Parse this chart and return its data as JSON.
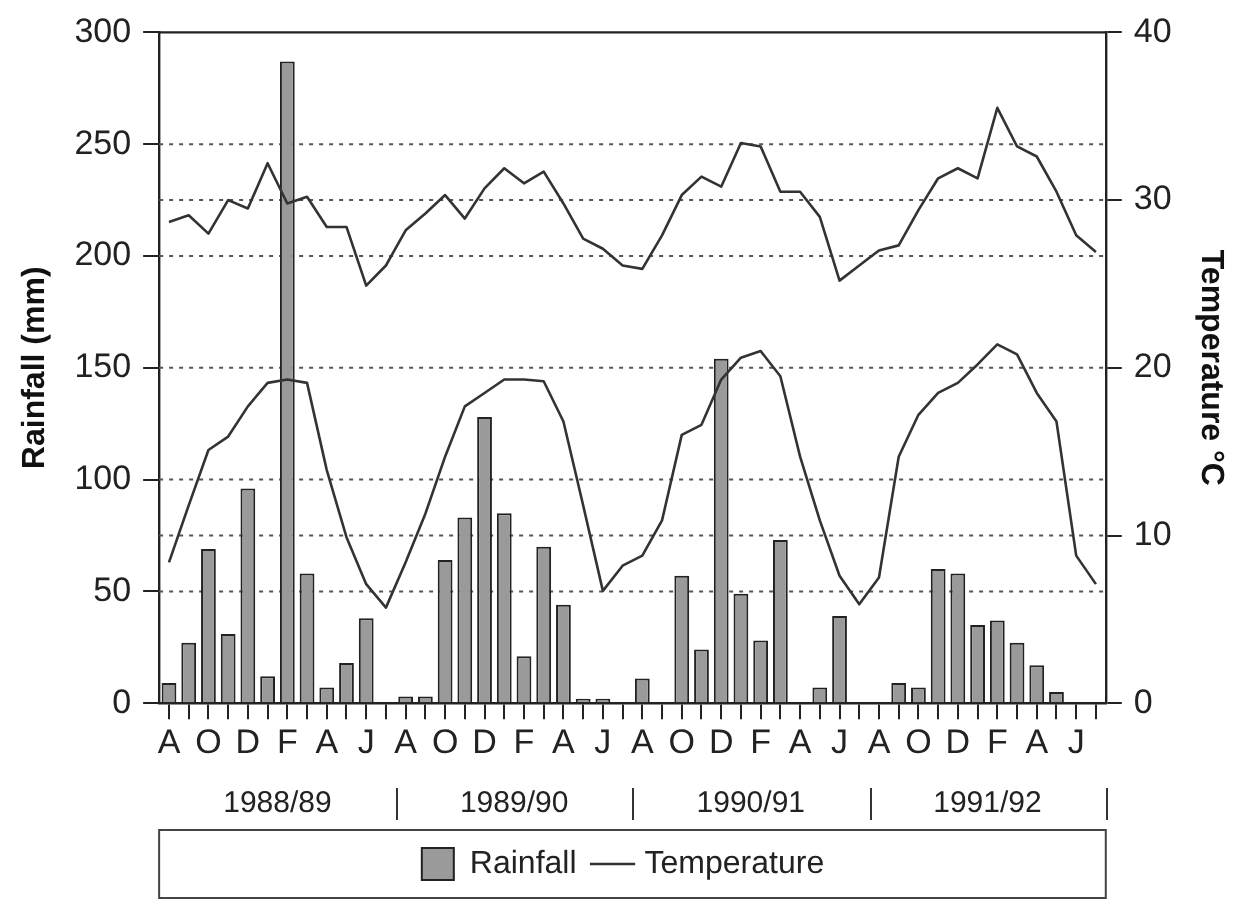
{
  "chart_data": {
    "type": "bar",
    "xlabel": null,
    "ylabel": "Rainfall (mm)",
    "y2label": "Temperature °C",
    "categories": [
      "A",
      null,
      "O",
      null,
      "D",
      null,
      "F",
      null,
      "A",
      null,
      "J",
      null,
      "A",
      null,
      "O",
      null,
      "D",
      null,
      "F",
      null,
      "A",
      null,
      "J",
      null,
      "A",
      null,
      "O",
      null,
      "D",
      null,
      "F",
      null,
      "A",
      null,
      "J",
      null,
      "A",
      null,
      "O",
      null,
      "D",
      null,
      "F",
      null,
      "A",
      null,
      "J",
      null
    ],
    "series": [
      {
        "name": "Rainfall",
        "color": "#9a9a9a",
        "values": [
          9,
          27,
          69,
          31,
          96,
          12,
          287,
          58,
          7,
          18,
          38,
          0,
          3,
          3,
          64,
          83,
          128,
          85,
          21,
          70,
          44,
          2,
          2,
          0,
          11,
          0,
          57,
          24,
          154,
          49,
          28,
          73,
          0,
          7,
          39,
          0,
          0,
          9,
          7,
          60,
          58,
          35,
          37,
          27,
          17,
          5,
          0,
          0
        ]
      },
      {
        "name": "Temperature",
        "type": "line",
        "axis": "y2",
        "color": "#333333",
        "values": [
          28.7,
          29.1,
          28.0,
          30.0,
          29.5,
          32.2,
          29.8,
          30.2,
          28.4,
          28.4,
          24.9,
          26.1,
          28.2,
          29.2,
          30.3,
          28.9,
          30.7,
          31.9,
          31.0,
          31.7,
          29.8,
          27.7,
          27.1,
          26.1,
          25.9,
          27.9,
          30.3,
          31.4,
          30.8,
          33.4,
          33.2,
          30.5,
          30.5,
          29.0,
          25.2,
          26.1,
          27.0,
          27.3,
          29.4,
          31.3,
          31.9,
          31.3,
          35.5,
          33.2,
          32.6,
          30.5,
          27.9,
          26.9
        ]
      },
      {
        "type": "line",
        "axis": "y2",
        "color": "#333333",
        "values": [
          8.4,
          11.8,
          15.1,
          15.9,
          17.7,
          19.1,
          19.3,
          19.1,
          13.9,
          9.9,
          7.1,
          5.7,
          8.4,
          11.3,
          14.7,
          17.7,
          18.5,
          19.3,
          19.3,
          19.2,
          16.8,
          11.8,
          6.7,
          8.2,
          8.8,
          10.9,
          16.0,
          16.6,
          19.3,
          20.6,
          21.0,
          19.5,
          14.7,
          10.9,
          7.6,
          5.9,
          7.5,
          14.7,
          17.2,
          18.5,
          19.1,
          20.2,
          21.4,
          20.8,
          18.5,
          16.8,
          8.8,
          7.1
        ]
      }
    ],
    "ylim": [
      0,
      300
    ],
    "yticks": [
      0,
      50,
      100,
      150,
      200,
      250,
      300
    ],
    "y2lim": [
      0,
      40
    ],
    "y2ticks": [
      0,
      10,
      20,
      30,
      40
    ],
    "ref_lines": [
      {
        "axis": "y",
        "value": 50,
        "color": "#555555",
        "line_style": "dotted"
      },
      {
        "axis": "y",
        "value": 75,
        "color": "#555555",
        "line_style": "dotted"
      },
      {
        "axis": "y",
        "value": 100,
        "color": "#555555",
        "line_style": "dotted"
      },
      {
        "axis": "y",
        "value": 150,
        "color": "#555555",
        "line_style": "dotted"
      },
      {
        "axis": "y",
        "value": 200,
        "color": "#555555",
        "line_style": "dotted"
      },
      {
        "axis": "y",
        "value": 225,
        "color": "#555555",
        "line_style": "dotted"
      },
      {
        "axis": "y",
        "value": 250,
        "color": "#555555",
        "line_style": "dotted"
      }
    ],
    "annotations": [
      "1988/89",
      "1989/90",
      "1990/91",
      "1991/92"
    ],
    "legend": "bottom",
    "marker": "none",
    "line_style": "solid"
  }
}
